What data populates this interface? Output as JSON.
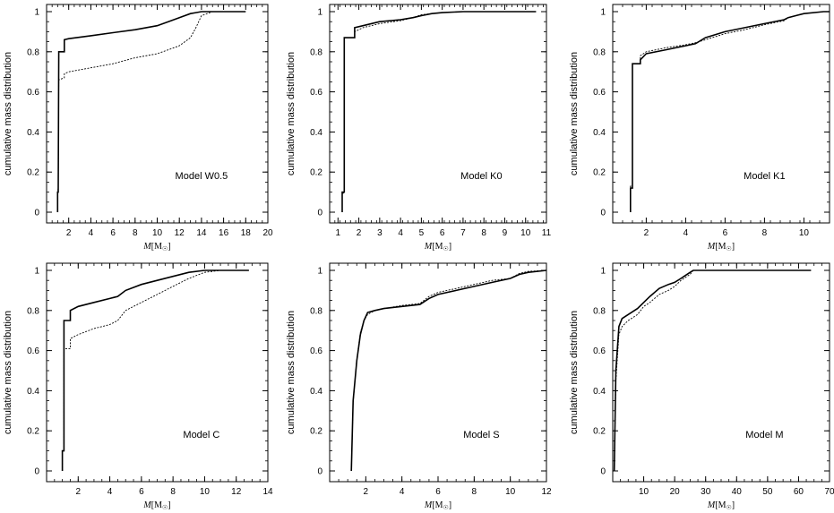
{
  "figure": {
    "ylabel": "cumulative mass distribution",
    "xlabel_main": "M",
    "xlabel_unit": "[M",
    "xlabel_sun": "☉",
    "xlabel_close": "]"
  },
  "chart_data": [
    {
      "type": "line",
      "annotation": "Model W0.5",
      "xlabel": "M[M☉]",
      "ylabel": "cumulative mass distribution",
      "xlim": [
        0,
        20
      ],
      "ylim": [
        0,
        1
      ],
      "xticks": [
        2,
        4,
        6,
        8,
        10,
        12,
        14,
        16,
        18,
        20
      ],
      "yticks": [
        0,
        0.2,
        0.4,
        0.6,
        0.8,
        1
      ],
      "series": [
        {
          "style": "solid",
          "x": [
            1.0,
            1.0,
            1.05,
            1.1,
            1.1,
            1.6,
            1.6,
            2,
            4,
            6,
            8,
            10,
            11,
            12,
            13,
            13.5,
            14,
            15,
            16,
            18
          ],
          "y": [
            0,
            0.1,
            0.1,
            0.8,
            0.8,
            0.8,
            0.86,
            0.865,
            0.88,
            0.895,
            0.91,
            0.93,
            0.95,
            0.97,
            0.99,
            0.995,
            1.0,
            1.0,
            1.0,
            1.0
          ]
        },
        {
          "style": "dashed",
          "x": [
            1.0,
            1.0,
            1.05,
            1.1,
            1.1,
            1.6,
            1.6,
            2,
            4,
            6,
            8,
            10,
            11,
            12,
            13,
            13.5,
            14,
            15,
            16,
            18
          ],
          "y": [
            0,
            0.1,
            0.12,
            0.66,
            0.66,
            0.67,
            0.69,
            0.7,
            0.72,
            0.74,
            0.77,
            0.79,
            0.81,
            0.83,
            0.87,
            0.92,
            0.98,
            1.0,
            1.0,
            1.0
          ]
        }
      ]
    },
    {
      "type": "line",
      "annotation": "Model K0",
      "xlabel": "M[M☉]",
      "ylabel": "cumulative mass distribution",
      "xlim": [
        0.6,
        11
      ],
      "ylim": [
        0,
        1
      ],
      "xticks": [
        1,
        2,
        3,
        4,
        5,
        6,
        7,
        8,
        9,
        10,
        11
      ],
      "yticks": [
        0,
        0.2,
        0.4,
        0.6,
        0.8,
        1
      ],
      "series": [
        {
          "style": "solid",
          "x": [
            1.2,
            1.2,
            1.3,
            1.3,
            1.8,
            1.8,
            2.2,
            3,
            4,
            4.6,
            5,
            5.5,
            6,
            7,
            8,
            10.5
          ],
          "y": [
            0,
            0.1,
            0.1,
            0.87,
            0.87,
            0.92,
            0.93,
            0.95,
            0.96,
            0.97,
            0.98,
            0.99,
            0.995,
            1.0,
            1.0,
            1.0
          ]
        },
        {
          "style": "dashed",
          "x": [
            1.2,
            1.2,
            1.3,
            1.3,
            1.8,
            1.8,
            2.2,
            3,
            4,
            4.6,
            5,
            5.5,
            6,
            7,
            8,
            10.5
          ],
          "y": [
            0,
            0.09,
            0.1,
            0.87,
            0.87,
            0.9,
            0.92,
            0.94,
            0.955,
            0.97,
            0.985,
            0.99,
            0.995,
            1.0,
            1.0,
            1.0
          ]
        }
      ]
    },
    {
      "type": "line",
      "annotation": "Model K1",
      "xlabel": "M[M☉]",
      "ylabel": "cumulative mass distribution",
      "xlim": [
        0.3,
        11.3
      ],
      "ylim": [
        0,
        1
      ],
      "xticks": [
        2,
        4,
        6,
        8,
        10
      ],
      "yticks": [
        0,
        0.2,
        0.4,
        0.6,
        0.8,
        1
      ],
      "series": [
        {
          "style": "solid",
          "x": [
            1.2,
            1.2,
            1.3,
            1.3,
            1.7,
            1.7,
            2,
            3,
            4,
            4.5,
            5,
            6,
            7,
            8,
            9,
            9.2,
            10,
            11,
            11.3
          ],
          "y": [
            0,
            0.12,
            0.12,
            0.74,
            0.74,
            0.76,
            0.79,
            0.81,
            0.83,
            0.84,
            0.87,
            0.9,
            0.92,
            0.94,
            0.96,
            0.97,
            0.99,
            1.0,
            1.0
          ]
        },
        {
          "style": "dashed",
          "x": [
            1.2,
            1.2,
            1.3,
            1.3,
            1.7,
            1.7,
            2,
            3,
            4,
            4.5,
            5,
            6,
            7,
            8,
            9,
            9.2,
            10,
            11,
            11.3
          ],
          "y": [
            0,
            0.13,
            0.13,
            0.74,
            0.74,
            0.78,
            0.8,
            0.82,
            0.835,
            0.845,
            0.86,
            0.89,
            0.91,
            0.935,
            0.955,
            0.97,
            0.99,
            1.0,
            1.0
          ]
        }
      ]
    },
    {
      "type": "line",
      "annotation": "Model C",
      "xlabel": "M[M☉]",
      "ylabel": "cumulative mass distribution",
      "xlim": [
        0,
        14
      ],
      "ylim": [
        0,
        1
      ],
      "xticks": [
        2,
        4,
        6,
        8,
        10,
        12,
        14
      ],
      "yticks": [
        0,
        0.2,
        0.4,
        0.6,
        0.8,
        1
      ],
      "series": [
        {
          "style": "solid",
          "x": [
            1.0,
            1.0,
            1.1,
            1.1,
            1.5,
            1.5,
            2,
            3,
            4,
            4.5,
            5,
            6,
            7,
            8,
            9,
            10,
            11,
            12.8
          ],
          "y": [
            0,
            0.1,
            0.1,
            0.75,
            0.75,
            0.8,
            0.82,
            0.84,
            0.86,
            0.87,
            0.9,
            0.93,
            0.95,
            0.97,
            0.99,
            1.0,
            1.0,
            1.0
          ]
        },
        {
          "style": "dashed",
          "x": [
            1.0,
            1.0,
            1.1,
            1.1,
            1.5,
            1.5,
            2,
            3,
            4,
            4.5,
            5,
            6,
            7,
            8,
            9,
            10,
            11,
            12.8
          ],
          "y": [
            0,
            0.1,
            0.1,
            0.61,
            0.61,
            0.66,
            0.68,
            0.71,
            0.73,
            0.75,
            0.8,
            0.84,
            0.88,
            0.92,
            0.96,
            0.99,
            1.0,
            1.0
          ]
        }
      ]
    },
    {
      "type": "line",
      "annotation": "Model S",
      "xlabel": "M[M☉]",
      "ylabel": "cumulative mass distribution",
      "xlim": [
        0,
        12
      ],
      "ylim": [
        0,
        1
      ],
      "xticks": [
        2,
        4,
        6,
        8,
        10,
        12
      ],
      "yticks": [
        0,
        0.2,
        0.4,
        0.6,
        0.8,
        1
      ],
      "series": [
        {
          "style": "solid",
          "x": [
            1.2,
            1.3,
            1.5,
            1.7,
            1.9,
            2.1,
            2.5,
            3,
            4,
            5,
            5.5,
            6,
            7,
            8,
            9,
            10,
            10.5,
            11,
            12
          ],
          "y": [
            0,
            0.35,
            0.55,
            0.68,
            0.75,
            0.79,
            0.8,
            0.81,
            0.82,
            0.83,
            0.86,
            0.88,
            0.9,
            0.92,
            0.94,
            0.96,
            0.98,
            0.99,
            1.0
          ]
        },
        {
          "style": "dashed",
          "x": [
            1.2,
            1.3,
            1.5,
            1.7,
            1.9,
            2.1,
            2.5,
            3,
            4,
            5,
            5.5,
            6,
            7,
            8,
            9,
            10,
            10.5,
            11,
            12
          ],
          "y": [
            0,
            0.34,
            0.56,
            0.69,
            0.75,
            0.78,
            0.8,
            0.81,
            0.825,
            0.835,
            0.87,
            0.89,
            0.91,
            0.93,
            0.95,
            0.96,
            0.985,
            0.995,
            1.0
          ]
        }
      ]
    },
    {
      "type": "line",
      "annotation": "Model M",
      "xlabel": "M[M☉]",
      "ylabel": "cumulative mass distribution",
      "xlim": [
        0,
        70
      ],
      "ylim": [
        0,
        1
      ],
      "xticks": [
        10,
        20,
        30,
        40,
        50,
        60,
        70
      ],
      "yticks": [
        0,
        0.2,
        0.4,
        0.6,
        0.8,
        1
      ],
      "series": [
        {
          "style": "solid",
          "x": [
            0.5,
            1,
            2,
            3,
            5,
            8,
            10,
            12,
            15,
            18,
            20,
            22,
            25,
            26,
            30,
            40,
            50,
            64
          ],
          "y": [
            0,
            0.5,
            0.72,
            0.76,
            0.78,
            0.81,
            0.84,
            0.87,
            0.91,
            0.93,
            0.94,
            0.96,
            0.99,
            1.0,
            1.0,
            1.0,
            1.0,
            1.0
          ]
        },
        {
          "style": "dashed",
          "x": [
            0.5,
            1,
            2,
            3,
            5,
            8,
            10,
            12,
            15,
            18,
            20,
            22,
            25,
            26,
            30,
            40,
            50,
            64
          ],
          "y": [
            0,
            0.45,
            0.68,
            0.72,
            0.75,
            0.78,
            0.82,
            0.84,
            0.88,
            0.9,
            0.92,
            0.95,
            0.98,
            1.0,
            1.0,
            1.0,
            1.0,
            1.0
          ]
        }
      ]
    }
  ]
}
